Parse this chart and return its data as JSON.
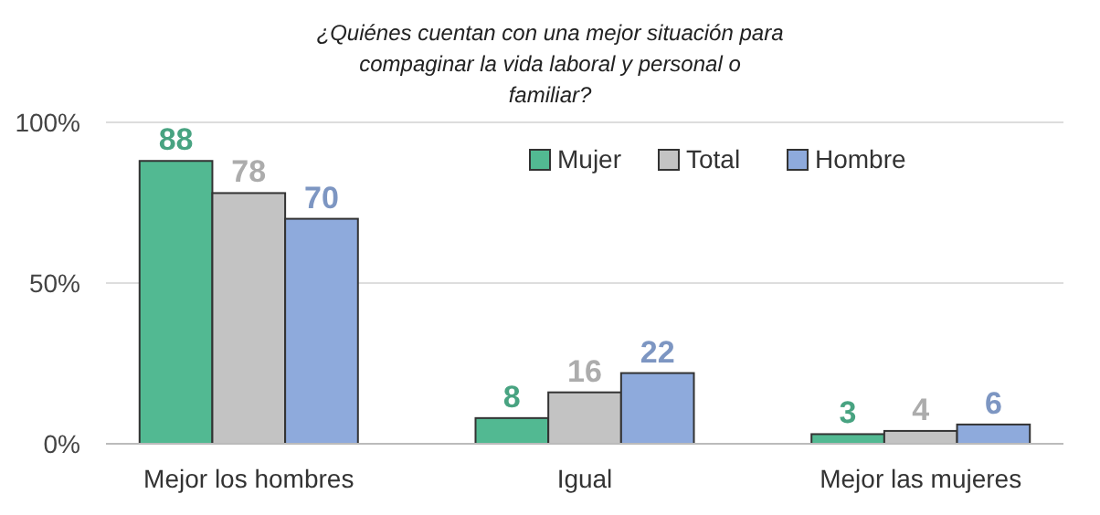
{
  "chart_data": {
    "type": "bar",
    "title": "¿Quiénes cuentan con una mejor situación para compaginar la vida laboral y personal o familiar?",
    "categories": [
      "Mejor los hombres",
      "Igual",
      "Mejor las mujeres"
    ],
    "series": [
      {
        "name": "Mujer",
        "color": "#52b992",
        "values": [
          88,
          8,
          3
        ]
      },
      {
        "name": "Total",
        "color": "#c3c3c3",
        "values": [
          78,
          16,
          4
        ]
      },
      {
        "name": "Hombre",
        "color": "#8eaadc",
        "values": [
          70,
          22,
          6
        ]
      }
    ],
    "ylim": [
      0,
      100
    ],
    "yticks": [
      {
        "value": 0,
        "label": "0%"
      },
      {
        "value": 50,
        "label": "50%"
      },
      {
        "value": 100,
        "label": "100%"
      }
    ],
    "grid": "y",
    "legend": "top right",
    "data_labels": true
  }
}
